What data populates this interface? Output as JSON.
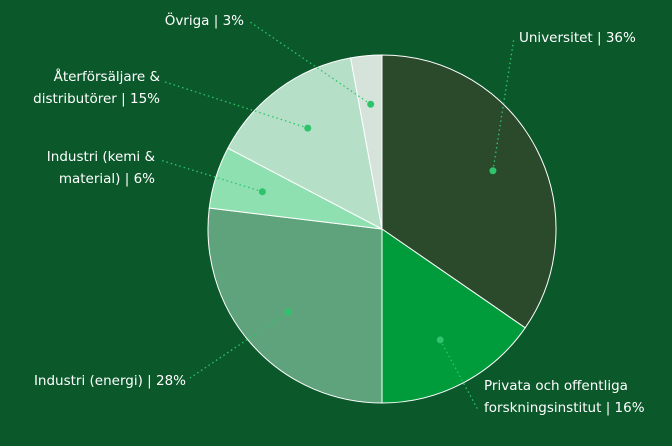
{
  "chart_data": {
    "type": "pie",
    "categories": [
      "Universitet | 36%",
      "Privata och offentliga\nforskningsinstitut | 16%",
      "Industri (energi) | 28%",
      "Industri (kemi &\nmaterial) | 6%",
      "Återförsäljare &\ndistributörer | 15%",
      "Övriga | 3%"
    ],
    "values": [
      36,
      16,
      28,
      6,
      15,
      3
    ],
    "colors": [
      "#2a4a2b",
      "#009b3a",
      "#5fa37c",
      "#8fe0b1",
      "#b5dfc7",
      "#d6e3db"
    ]
  }
}
